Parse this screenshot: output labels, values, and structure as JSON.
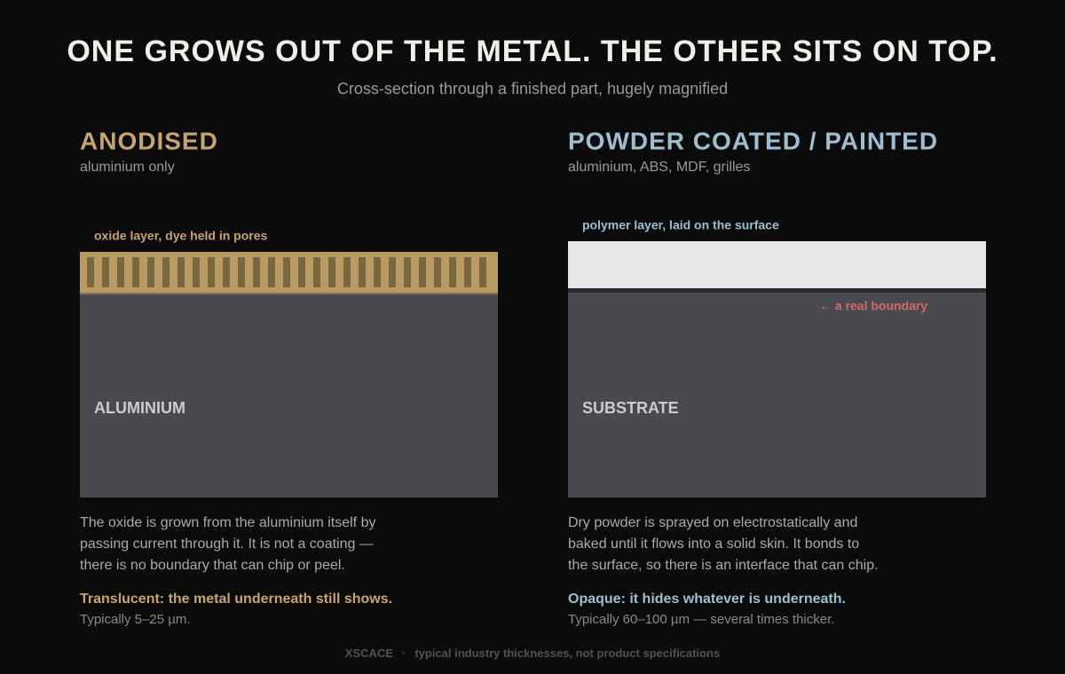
{
  "header": {
    "title": "ONE GROWS OUT OF THE METAL. THE OTHER SITS ON TOP.",
    "subtitle": "Cross-section through a finished part, hugely magnified"
  },
  "panels": [
    {
      "heading": "ANODISED",
      "subheading": "aluminium only",
      "layer_label": "oxide layer, dye held in pores",
      "base_label": "ALUMINIUM",
      "body": [
        "The oxide is grown from the aluminium itself by",
        "passing current through it. It is not a coating —",
        "there is no boundary that can chip or peel."
      ],
      "emphasis": "Translucent: the metal underneath still shows.",
      "note": "Typically 5–25 µm."
    },
    {
      "heading": "POWDER COATED / PAINTED",
      "subheading": "aluminium, ABS, MDF, grilles",
      "layer_label": "polymer layer, laid on the surface",
      "base_label": "SUBSTRATE",
      "boundary_label": "← a real boundary",
      "body": [
        "Dry powder is sprayed on electrostatically and",
        "baked until it flows into a solid skin. It bonds to",
        "the surface, so there is an interface that can chip."
      ],
      "emphasis": "Opaque: it hides whatever is underneath.",
      "note": "Typically 60–100 µm — several times thicker."
    }
  ],
  "footer": {
    "brand": "XSCACE",
    "separator": "·",
    "note": "typical industry thicknesses, not product specifications"
  }
}
